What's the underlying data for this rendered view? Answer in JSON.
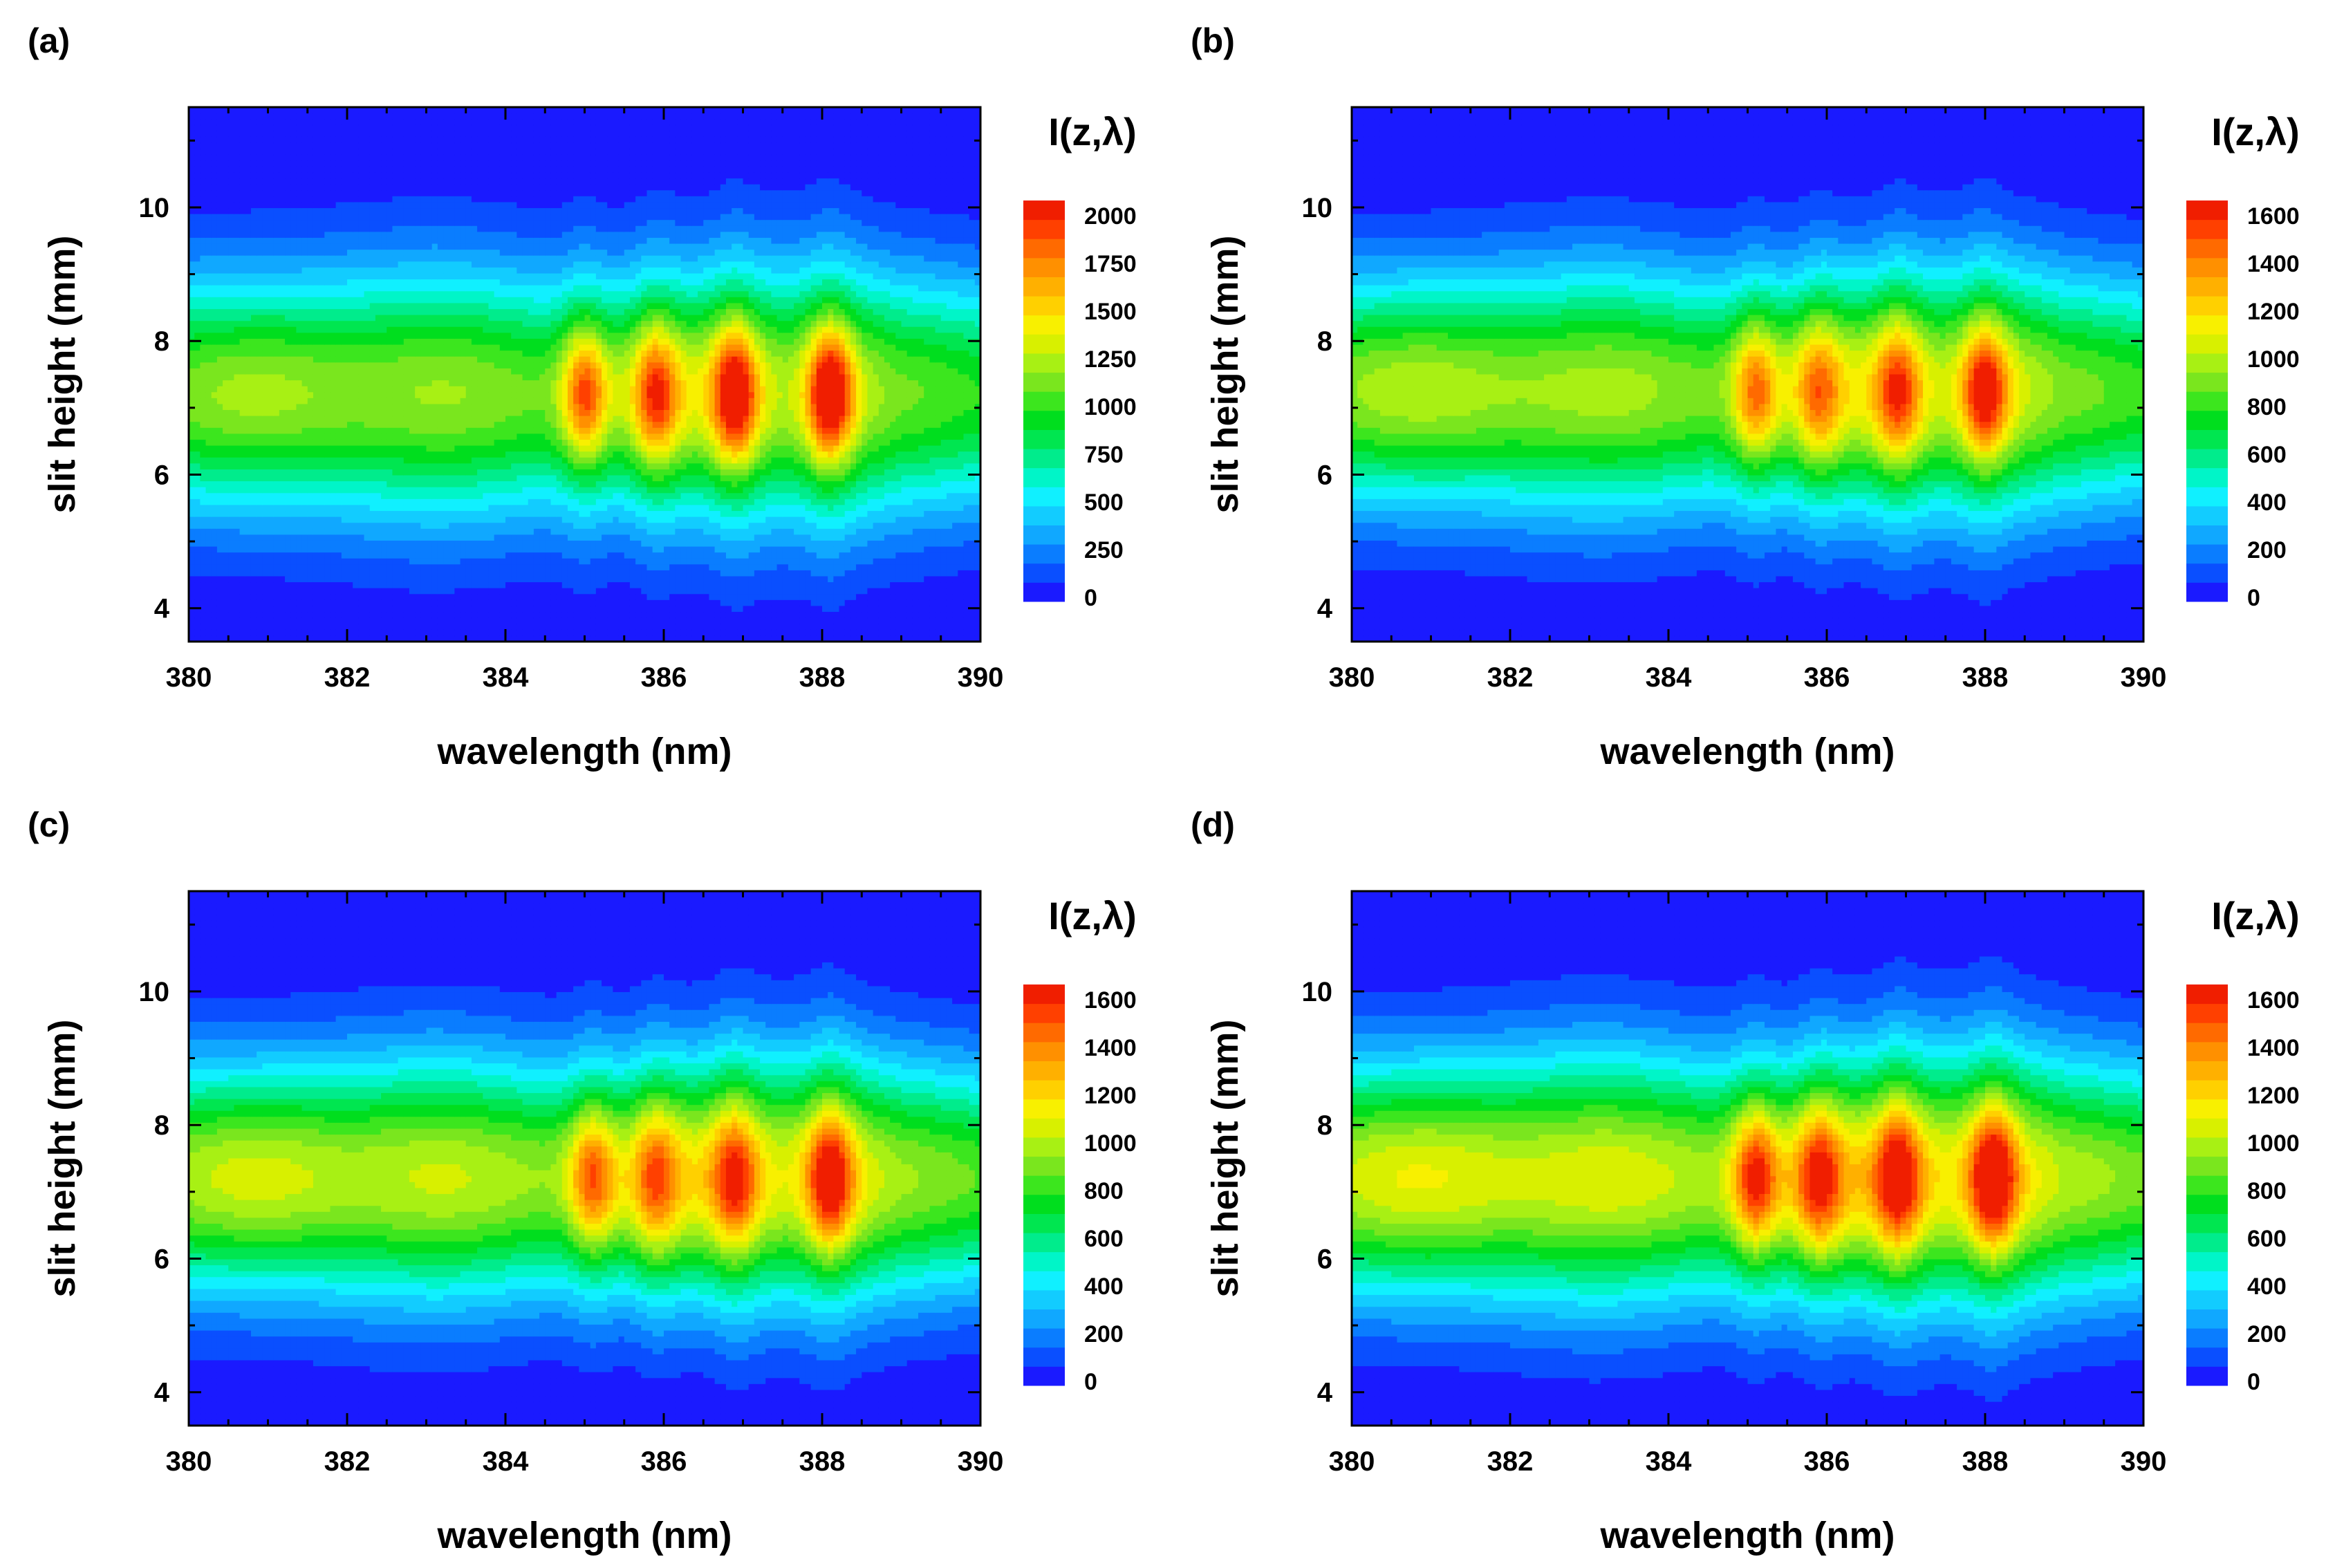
{
  "figure": {
    "panels_note": "2x2 grid of spectral contour maps",
    "colors": {
      "levels": [
        "#1a1aff",
        "#0a4fff",
        "#0a7dff",
        "#10a8ff",
        "#12ccff",
        "#10f0ff",
        "#00f5c8",
        "#00ec8c",
        "#00e650",
        "#00de1e",
        "#3ce61e",
        "#7ae61e",
        "#a8f014",
        "#d8f000",
        "#f8f000",
        "#ffd000",
        "#ffb000",
        "#ff9000",
        "#ff6a00",
        "#ff4000",
        "#f01e00"
      ]
    }
  },
  "chart_data": [
    {
      "id": "a",
      "type": "heatmap",
      "panel_label": "(a)",
      "xlabel": "wavelength (nm)",
      "ylabel": "slit height (mm)",
      "xlim": [
        380,
        390
      ],
      "ylim": [
        3.5,
        11.5
      ],
      "xticks": [
        "380",
        "382",
        "384",
        "386",
        "388",
        "390"
      ],
      "yticks": [
        "4",
        "6",
        "8",
        "10"
      ],
      "colorbar": {
        "title": "I(z,λ)",
        "ticks": [
          "0",
          "250",
          "500",
          "750",
          "1000",
          "1250",
          "1500",
          "1750",
          "2000"
        ],
        "max": 2100
      },
      "profile": {
        "center_mm": 7.2,
        "base_peak": 1150,
        "base_half_width_mm": 1.8
      },
      "features": [
        {
          "wavelength_nm": 385.0,
          "peak": 1800
        },
        {
          "wavelength_nm": 385.9,
          "peak": 1750
        },
        {
          "wavelength_nm": 386.9,
          "peak": 2000
        },
        {
          "wavelength_nm": 388.1,
          "peak": 2100
        }
      ]
    },
    {
      "id": "b",
      "type": "heatmap",
      "panel_label": "(b)",
      "xlabel": "wavelength (nm)",
      "ylabel": "slit height (mm)",
      "xlim": [
        380,
        390
      ],
      "ylim": [
        3.5,
        11.5
      ],
      "xticks": [
        "380",
        "382",
        "384",
        "386",
        "388",
        "390"
      ],
      "yticks": [
        "4",
        "6",
        "8",
        "10"
      ],
      "colorbar": {
        "title": "I(z,λ)",
        "ticks": [
          "0",
          "200",
          "400",
          "600",
          "800",
          "1000",
          "1200",
          "1400",
          "1600"
        ],
        "max": 1680
      },
      "profile": {
        "center_mm": 7.25,
        "base_peak": 950,
        "base_half_width_mm": 1.75
      },
      "features": [
        {
          "wavelength_nm": 385.1,
          "peak": 1350
        },
        {
          "wavelength_nm": 385.9,
          "peak": 1250
        },
        {
          "wavelength_nm": 386.9,
          "peak": 1380
        },
        {
          "wavelength_nm": 388.0,
          "peak": 1550
        }
      ]
    },
    {
      "id": "c",
      "type": "heatmap",
      "panel_label": "(c)",
      "xlabel": "wavelength (nm)",
      "ylabel": "slit height (mm)",
      "xlim": [
        380,
        390
      ],
      "ylim": [
        3.5,
        11.5
      ],
      "xticks": [
        "380",
        "382",
        "384",
        "386",
        "388",
        "390"
      ],
      "yticks": [
        "4",
        "6",
        "8",
        "10"
      ],
      "colorbar": {
        "title": "I(z,λ)",
        "ticks": [
          "0",
          "200",
          "400",
          "600",
          "800",
          "1000",
          "1200",
          "1400",
          "1600"
        ],
        "max": 1680
      },
      "profile": {
        "center_mm": 7.2,
        "base_peak": 1000,
        "base_half_width_mm": 1.75
      },
      "features": [
        {
          "wavelength_nm": 385.1,
          "peak": 1400
        },
        {
          "wavelength_nm": 385.9,
          "peak": 1300
        },
        {
          "wavelength_nm": 386.9,
          "peak": 1420
        },
        {
          "wavelength_nm": 388.1,
          "peak": 1600
        }
      ]
    },
    {
      "id": "d",
      "type": "heatmap",
      "panel_label": "(d)",
      "xlabel": "wavelength (nm)",
      "ylabel": "slit height (mm)",
      "xlim": [
        380,
        390
      ],
      "ylim": [
        3.5,
        11.5
      ],
      "xticks": [
        "380",
        "382",
        "384",
        "386",
        "388",
        "390"
      ],
      "yticks": [
        "4",
        "6",
        "8",
        "10"
      ],
      "colorbar": {
        "title": "I(z,λ)",
        "ticks": [
          "0",
          "200",
          "400",
          "600",
          "800",
          "1000",
          "1200",
          "1400",
          "1600"
        ],
        "max": 1680
      },
      "profile": {
        "center_mm": 7.2,
        "base_peak": 1050,
        "base_half_width_mm": 1.8
      },
      "features": [
        {
          "wavelength_nm": 385.1,
          "peak": 1550
        },
        {
          "wavelength_nm": 385.9,
          "peak": 1450
        },
        {
          "wavelength_nm": 386.9,
          "peak": 1560
        },
        {
          "wavelength_nm": 388.1,
          "peak": 1700
        }
      ]
    }
  ]
}
